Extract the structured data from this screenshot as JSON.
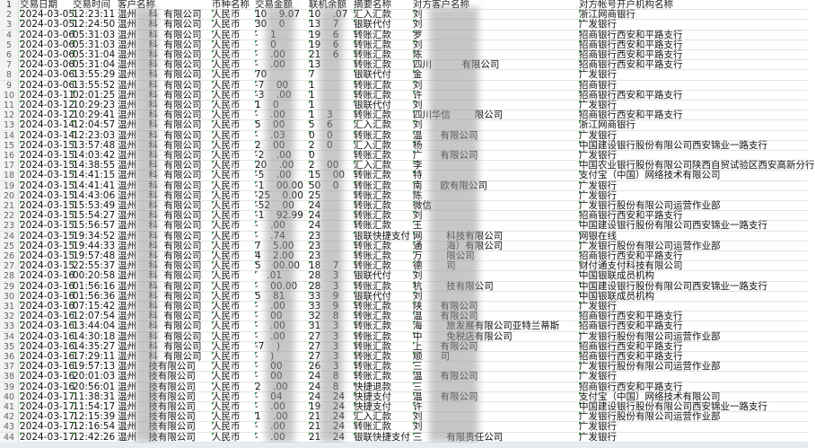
{
  "headers": [
    "交易日期",
    "交易时间",
    "客户名称",
    "币种名称",
    "交易金额",
    "联机余额",
    "摘要名称",
    "对方客户名称",
    "对方帐号开户机构名称"
  ],
  "rows": [
    [
      "2024-03-05",
      "12:23:11",
      "温州    科  有限公司",
      "人民币",
      "10    9.07",
      "10    .07",
      "汇入汇款",
      "刘",
      "浙江网商银行"
    ],
    [
      "2024-03-05",
      "12:24:50",
      "温州    科  有限公司",
      "人民币",
      "30    0",
      "13    7",
      "银联代付",
      "刘",
      "广发银行"
    ],
    [
      "2024-03-06",
      "05:31:03",
      "温州    科  有限公司",
      "人民币",
      "-    1",
      "19    6",
      "转账汇款",
      "罗",
      "招商银行西安和平路支行"
    ],
    [
      "2024-03-06",
      "05:31:03",
      "温州    科  有限公司",
      "人民币",
      "-    0",
      "19    6",
      "转账汇款",
      "刘",
      "招商银行西安和平路支行"
    ],
    [
      "2024-03-06",
      "05:31:04",
      "温州    科  有限公司",
      "人民币",
      "-    .00",
      "21    6",
      "转账汇款",
      "陈",
      "招商银行西安和平路支行"
    ],
    [
      "2024-03-06",
      "05:31:04",
      "温州    科  有限公司",
      "人民币",
      "-    .00",
      "13",
      "转账汇款",
      "四川          有限公司",
      "招商银行西安和平路支行"
    ],
    [
      "2024-03-06",
      "13:55:29",
      "温州    科  有限公司",
      "人民币",
      "70",
      "7",
      "银联代付",
      "金",
      "广发银行"
    ],
    [
      "2024-03-06",
      "13:55:52",
      "温州    科  有限公司",
      "人民币",
      "-7    00",
      "1",
      "转账汇款",
      "刘",
      "招商银行"
    ],
    [
      "2024-03-11",
      "02:01:25",
      "温州    科  有限公司",
      "人民币",
      "-3    .00",
      "1",
      "转账汇款",
      "许",
      "招商银行西安和平路支行"
    ],
    [
      "2024-03-12",
      "10:29:23",
      "温州    科  有限公司",
      "人民币",
      "1    0",
      "1",
      "银联代付",
      "刘",
      "广发银行"
    ],
    [
      "2024-03-12",
      "10:29:41",
      "温州    科  有限公司",
      "人民币",
      "-    .00",
      "1    3",
      "转账汇款",
      "四川华信        限公司",
      "招商银行西安和平路支行"
    ],
    [
      "2024-03-14",
      "12:04:57",
      "温州    科  有限公司",
      "人民币",
      "5    00",
      "5    6",
      "汇入汇款",
      "刘",
      "浙江网商银行"
    ],
    [
      "2024-03-14",
      "12:23:03",
      "温州    科  有限公司",
      "人民币",
      "-    .03",
      "0    0",
      "转账汇款",
      "温      有限公司",
      "广发银行"
    ],
    [
      "2024-03-15",
      "13:57:48",
      "温州    科  有限公司",
      "人民币",
      "2    00",
      "2    0",
      "汇入汇款",
      "杨",
      "中国建设银行股份有限公司西安锦业一路支行"
    ],
    [
      "2024-03-15",
      "14:03:42",
      "温州    科  有限公司",
      "人民币",
      "-2    .00",
      "0",
      "转账汇款",
      "广      有限公司",
      "广发银行"
    ],
    [
      "2024-03-15",
      "14:38:55",
      "温州    科  有限公司",
      "人民币",
      "20    .00",
      "2    00",
      "汇入汇款",
      "李",
      "中国农业银行股份有限公司陕西自贸试验区西安高新分行"
    ],
    [
      "2024-03-15",
      "14:41:15",
      "温州    科  有限公司",
      "人民币",
      "-5    .00",
      "15    00",
      "转账汇款",
      "特",
      "支付宝（中国）网络技术有限公司"
    ],
    [
      "2024-03-15",
      "14:41:41",
      "温州    科  有限公司",
      "人民币",
      "-1    00.00",
      "50    0",
      "转账汇款",
      "南      欧有限公司",
      "广发银行"
    ],
    [
      "2024-03-15",
      "14:43:06",
      "温州    科  有限公司",
      "人民币",
      "-25    0.00",
      "25",
      "转账汇款",
      "陈",
      "广发银行"
    ],
    [
      "2024-03-15",
      "15:53:49",
      "温州    科  有限公司",
      "人民币",
      "-52    00",
      "24",
      "转账汇款",
      "微信",
      "广发银行股份有限公司运营作业部"
    ],
    [
      "2024-03-15",
      "15:54:27",
      "温州    科  有限公司",
      "人民币",
      "-1    92.99",
      "24",
      "转账汇款",
      "刘",
      "招商银行西安和平路支行"
    ],
    [
      "2024-03-15",
      "15:56:57",
      "温州    科  有限公司",
      "人民币",
      "-    .00",
      "24",
      "转账汇款",
      "王",
      "中国建设银行股份有限公司西安锦业一路支行"
    ],
    [
      "2024-03-15",
      "19:34:52",
      "温州    科  有限公司",
      "人民币",
      "-    .74",
      "23",
      "银联快捷支付",
      "网        科技有限公司",
      "网银在线"
    ],
    [
      "2024-03-15",
      "19:44:33",
      "温州    科  有限公司",
      "人民币",
      "7    5.00",
      "23",
      "转账汇款",
      "通        海）有限公司",
      "广发银行股份有限公司运营作业部"
    ],
    [
      "2024-03-15",
      "19:57:48",
      "温州    科  有限公司",
      "人民币",
      "4    2.00",
      "23",
      "转账汇款",
      "万        限公司",
      "招商银行西安和平路支行"
    ],
    [
      "2024-03-15",
      "22:55:37",
      "温州    科  有限公司",
      "人民币",
      "5    00.00",
      "18    7",
      "转账汇款",
      "德        司",
      "财付通支付科技有限公司"
    ],
    [
      "2024-03-16",
      "00:20:58",
      "温州    科  有限公司",
      "人民币",
      "    .01",
      "28    3",
      "银联代付",
      "刘",
      "中国银联成员机构"
    ],
    [
      "2024-03-16",
      "01:56:16",
      "温州    科  有限公司",
      "人民币",
      "-    00.00",
      "28    3",
      "转账汇款",
      "杭        技有限公司",
      "中国建设银行股份有限公司西安锦业一路支行"
    ],
    [
      "2024-03-16",
      "01:56:36",
      "温州    科  有限公司",
      "人民币",
      "5    81",
      "33    9",
      "银联代付",
      "刘",
      "中国银联成员机构"
    ],
    [
      "2024-03-16",
      "07:15:42",
      "温州    科  有限公司",
      "人民币",
      "-    .00",
      "33    9",
      "转账汇款",
      "陕      有限公司",
      "广发银行"
    ],
    [
      "2024-03-16",
      "12:07:54",
      "温州    科  有限公司",
      "人民币",
      "-    00",
      "32    8",
      "转账汇款",
      "温      有限公司",
      "招商银行西安和平路支行"
    ],
    [
      "2024-03-16",
      "13:44:04",
      "温州    科  有限公司",
      "人民币",
      "-    .00",
      "31    3",
      "转账汇款",
      "海        旅发展有限公司亚特兰蒂斯",
      "招商银行西安和平路支行"
    ],
    [
      "2024-03-16",
      "14:30:18",
      "温州    科  有限公司",
      "人民币",
      "-    .00",
      "27    3",
      "转账汇款",
      "中        免税店有限公司",
      "广发银行股份有限公司运营作业部"
    ],
    [
      "2024-03-16",
      "14:35:27",
      "温州    科  有限公司",
      "人民币",
      "-7    )",
      "27    3",
      "转账汇款",
      "上      有限公司",
      "招商银行西安和平路支行"
    ],
    [
      "2024-03-16",
      "17:29:11",
      "温州    科  有限公司",
      "人民币",
      "-    )",
      "27    3",
      "转账汇款",
      "顺      司",
      "招商银行西安和平路支行"
    ],
    [
      "2024-03-16",
      "19:57:13",
      "温州    技有限公司",
      "人民币",
      "-    00",
      "26    3",
      "转账汇款",
      "三",
      "广发银行股份有限公司运营作业部"
    ],
    [
      "2024-03-16",
      "20:01:03",
      "温州    技有限公司",
      "人民币",
      "-    00",
      "24    8",
      "转账汇款",
      "温      有限公司",
      "广发银行"
    ],
    [
      "2024-03-16",
      "20:56:01",
      "温州    技有限公司",
      "人民币",
      "2    .00",
      "24    8",
      "快捷退款",
      "三",
      "招商银行西安和平路支行"
    ],
    [
      "2024-03-17",
      "11:38:31",
      "温州    技有限公司",
      "人民币",
      "-    04",
      "24    24",
      "快捷支付",
      "温      有限公司",
      "支付宝（中国）网络技术有限公司"
    ],
    [
      "2024-03-17",
      "11:54:17",
      "温州    技有限公司",
      "人民币",
      "-    .00",
      "19    24",
      "快捷支付",
      "许",
      "中国建设银行股份有限公司西安锦业一路支行"
    ],
    [
      "2024-03-17",
      "12:15:39",
      "温州    技有限公司",
      "人民币",
      "1    .00",
      "21    24",
      "汇入汇款",
      "刘",
      "广发银行股份有限公司运营作业部"
    ],
    [
      "2024-03-17",
      "12:16:54",
      "温州    技有限公司",
      "人民币",
      "-    .00",
      "21    24",
      "转账汇款",
      "刘",
      "广发银行"
    ],
    [
      "2024-03-17",
      "12:42:26",
      "温州    技有限公司",
      "人民币",
      "-    .00",
      "21    24",
      "银联快捷支付",
      "三        有限责任公司",
      "广发银行"
    ]
  ]
}
